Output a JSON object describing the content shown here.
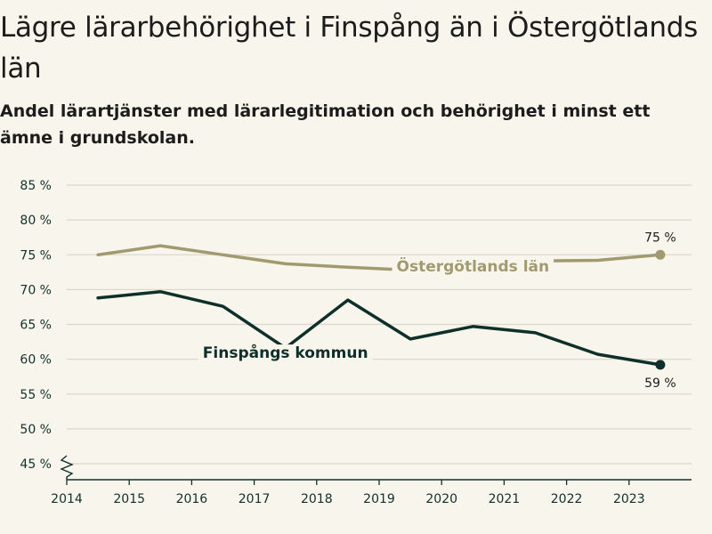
{
  "title": "Lägre lärarbehörighet i Finspång än i Östergötlands län",
  "subtitle": "Andel lärartjänster med lärarlegitimation och behörighet i minst ett ämne i grundskolan.",
  "colors": {
    "background": "#f8f5ec",
    "finspang": "#0f2f2b",
    "ostergotland": "#a19a70",
    "grid": "#dcd8cc",
    "axis": "#12302c"
  },
  "chart_data": {
    "type": "line",
    "title": "Lägre lärarbehörighet i Finspång än i Östergötlands län",
    "subtitle": "Andel lärartjänster med lärarlegitimation och behörighet i minst ett ämne i grundskolan.",
    "xlabel": "",
    "ylabel": "",
    "x_tick_labels": [
      "2014",
      "2015",
      "2016",
      "2017",
      "2018",
      "2019",
      "2020",
      "2021",
      "2022",
      "2023"
    ],
    "y_tick_labels": [
      "45 %",
      "50 %",
      "55 %",
      "60 %",
      "65 %",
      "70 %",
      "75 %",
      "80 %",
      "85 %"
    ],
    "ylim": [
      45,
      87
    ],
    "xlim": [
      2014,
      2024
    ],
    "grid": true,
    "axis_break": true,
    "series": [
      {
        "name": "Östergötlands län",
        "x": [
          2014.5,
          2015.5,
          2016.5,
          2017.5,
          2018.5,
          2019.5,
          2020.5,
          2021.5,
          2022.5,
          2023.5
        ],
        "values": [
          75.0,
          76.3,
          75.0,
          73.7,
          73.2,
          72.8,
          73.5,
          74.1,
          74.2,
          75.0
        ],
        "end_label": "75 %"
      },
      {
        "name": "Finspångs kommun",
        "x": [
          2014.5,
          2015.5,
          2016.5,
          2017.5,
          2018.5,
          2019.5,
          2020.5,
          2021.5,
          2022.5,
          2023.5
        ],
        "values": [
          68.8,
          69.7,
          67.6,
          61.6,
          68.5,
          62.9,
          64.7,
          63.8,
          60.7,
          59.2
        ],
        "end_label": "59 %"
      }
    ]
  }
}
